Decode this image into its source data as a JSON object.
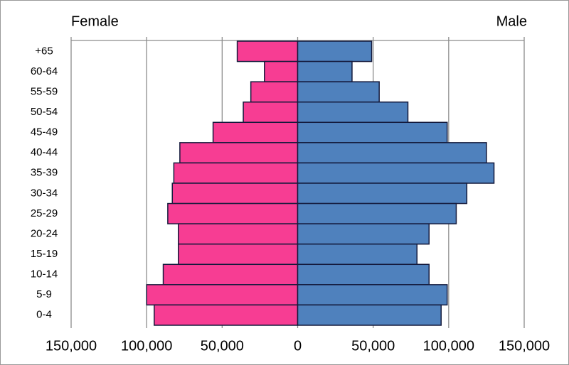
{
  "chart_data": {
    "type": "pyramid",
    "categories": [
      "+65",
      "60-64",
      "55-59",
      "50-54",
      "45-49",
      "40-44",
      "35-39",
      "30-34",
      "25-29",
      "20-24",
      "15-19",
      "10-14",
      "5-9",
      "0-4"
    ],
    "series": [
      {
        "name": "Female",
        "color": "#f73d93",
        "side": "left",
        "values": [
          40000,
          22000,
          31000,
          36000,
          56000,
          78000,
          82000,
          83000,
          86000,
          79000,
          79000,
          89000,
          100000,
          95000
        ]
      },
      {
        "name": "Male",
        "color": "#4f81bd",
        "side": "right",
        "values": [
          49000,
          36000,
          54000,
          73000,
          99000,
          125000,
          130000,
          112000,
          105000,
          87000,
          79000,
          87000,
          99000,
          95000
        ]
      }
    ],
    "xlim": [
      -150000,
      150000
    ],
    "xticks": [
      {
        "value": -150000,
        "label": "150,000"
      },
      {
        "value": -100000,
        "label": "100,000"
      },
      {
        "value": -50000,
        "label": "50,000"
      },
      0,
      {
        "value": 50000,
        "label": "50,000"
      },
      {
        "value": 100000,
        "label": "100,000"
      },
      {
        "value": 150000,
        "label": "150,000"
      }
    ],
    "grid": true
  }
}
